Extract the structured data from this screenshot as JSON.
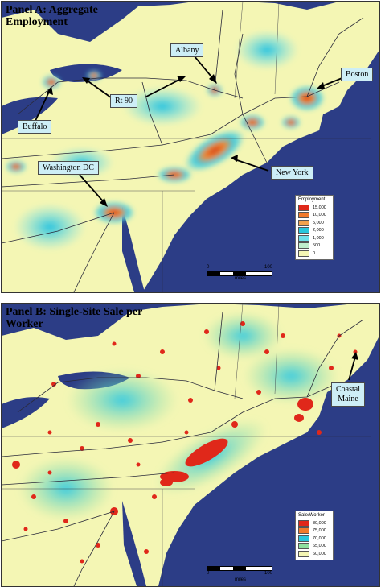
{
  "panel_a": {
    "title_line1": "Panel A: Aggregate",
    "title_line2": "Employment",
    "callouts": {
      "albany": "Albany",
      "boston": "Boston",
      "rt90": "Rt 90",
      "buffalo": "Buffalo",
      "washington": "Washington DC",
      "new_york": "New York"
    },
    "legend": {
      "title": "Employment",
      "items": [
        {
          "label": "15,000",
          "color": "#e0281a"
        },
        {
          "label": "10,000",
          "color": "#f07a2c"
        },
        {
          "label": "5,000",
          "color": "#f2a24e"
        },
        {
          "label": "2,000",
          "color": "#28c6dc"
        },
        {
          "label": "1,000",
          "color": "#6fe0ea"
        },
        {
          "label": "500",
          "color": "#bfeecc"
        },
        {
          "label": "0",
          "color": "#f4f6b4"
        }
      ]
    },
    "scale": {
      "start": "0",
      "end": "100",
      "unit": "miles"
    }
  },
  "panel_b": {
    "title_line1": "Panel B: Single-Site Sale per",
    "title_line2": "Worker",
    "callouts": {
      "coastal_maine_l1": "Coastal",
      "coastal_maine_l2": "Maine"
    },
    "legend": {
      "title": "Sale/Worker",
      "items": [
        {
          "label": "80,000",
          "color": "#e0281a"
        },
        {
          "label": "75,000",
          "color": "#f07a2c"
        },
        {
          "label": "70,000",
          "color": "#28c6dc"
        },
        {
          "label": "65,000",
          "color": "#8fe0a0"
        },
        {
          "label": "60,000",
          "color": "#f4f6b4"
        }
      ]
    },
    "scale": {
      "start": "0",
      "end": "100",
      "unit": "miles"
    }
  }
}
